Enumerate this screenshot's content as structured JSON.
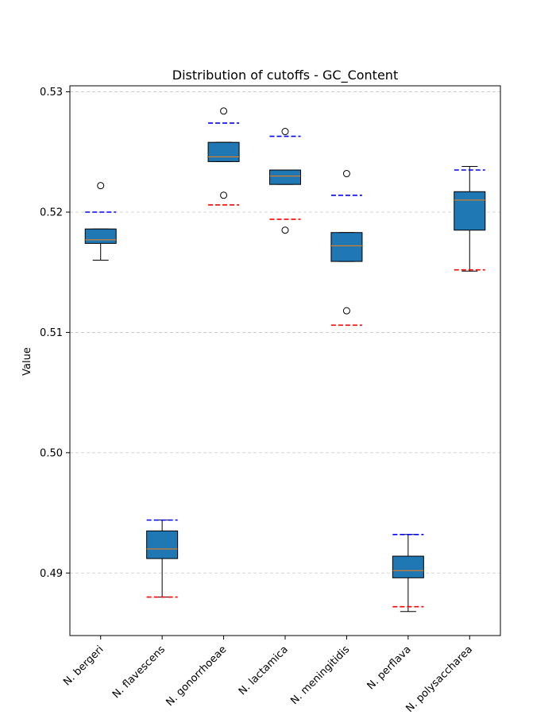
{
  "chart_data": {
    "type": "box",
    "title": "Distribution of cutoffs - GC_Content",
    "xlabel": "",
    "ylabel": "Value",
    "ylim": [
      0.4848,
      0.5305
    ],
    "yticks": [
      0.49,
      0.5,
      0.51,
      0.52,
      0.53
    ],
    "ytick_labels": [
      "0.49",
      "0.50",
      "0.51",
      "0.52",
      "0.53"
    ],
    "grid": "y-dashed",
    "box_color": "#1f77b4",
    "median_color": "#ff7f0e",
    "upper_cutoff_color": "#0000ff",
    "lower_cutoff_color": "#ff0000",
    "categories": [
      "N. bergeri",
      "N. flavescens",
      "N. gonorrhoeae",
      "N. lactamica",
      "N. meningitidis",
      "N. perflava",
      "N. polysaccharea"
    ],
    "boxes": [
      {
        "q1": 0.5174,
        "median": 0.5177,
        "q3": 0.5186,
        "whisker_low": 0.516,
        "whisker_high": 0.5186,
        "outliers": [
          0.5222
        ],
        "upper_cutoff": 0.52,
        "lower_cutoff": null
      },
      {
        "q1": 0.4912,
        "median": 0.492,
        "q3": 0.4935,
        "whisker_low": 0.488,
        "whisker_high": 0.4944,
        "outliers": [],
        "upper_cutoff": 0.4944,
        "lower_cutoff": 0.488
      },
      {
        "q1": 0.5242,
        "median": 0.5246,
        "q3": 0.5258,
        "whisker_low": 0.5242,
        "whisker_high": 0.5258,
        "outliers": [
          0.5284,
          0.5214
        ],
        "upper_cutoff": 0.5274,
        "lower_cutoff": 0.5206
      },
      {
        "q1": 0.5223,
        "median": 0.523,
        "q3": 0.5235,
        "whisker_low": 0.5223,
        "whisker_high": 0.5235,
        "outliers": [
          0.5267,
          0.5185
        ],
        "upper_cutoff": 0.5263,
        "lower_cutoff": 0.5194
      },
      {
        "q1": 0.5159,
        "median": 0.5172,
        "q3": 0.5183,
        "whisker_low": 0.5159,
        "whisker_high": 0.5183,
        "outliers": [
          0.5232,
          0.5118
        ],
        "upper_cutoff": 0.5214,
        "lower_cutoff": 0.5106
      },
      {
        "q1": 0.4896,
        "median": 0.4902,
        "q3": 0.4914,
        "whisker_low": 0.4868,
        "whisker_high": 0.4932,
        "outliers": [],
        "upper_cutoff": 0.4932,
        "lower_cutoff": 0.4872
      },
      {
        "q1": 0.5185,
        "median": 0.521,
        "q3": 0.5217,
        "whisker_low": 0.5151,
        "whisker_high": 0.5238,
        "outliers": [],
        "upper_cutoff": 0.5235,
        "lower_cutoff": 0.5152
      }
    ]
  }
}
